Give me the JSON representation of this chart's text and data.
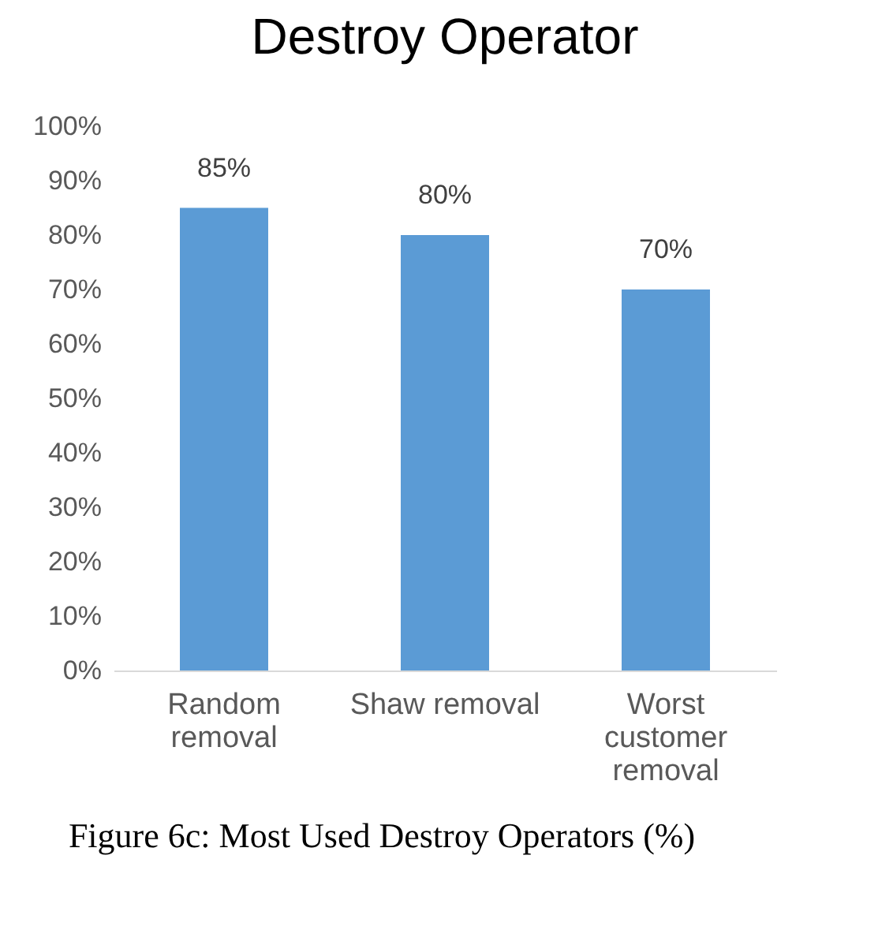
{
  "chart_data": {
    "type": "bar",
    "title": "Destroy Operator",
    "categories": [
      "Random removal",
      "Shaw removal",
      "Worst customer removal"
    ],
    "values": [
      85,
      80,
      70
    ],
    "color": "#5b9bd5",
    "value_labels": [
      "85%",
      "80%",
      "70%"
    ],
    "ylim": [
      0,
      100
    ],
    "yticks": [
      {
        "value": 0,
        "label": "0%"
      },
      {
        "value": 10,
        "label": "10%"
      },
      {
        "value": 20,
        "label": "20%"
      },
      {
        "value": 30,
        "label": "30%"
      },
      {
        "value": 40,
        "label": "40%"
      },
      {
        "value": 50,
        "label": "50%"
      },
      {
        "value": 60,
        "label": "60%"
      },
      {
        "value": 70,
        "label": "70%"
      },
      {
        "value": 80,
        "label": "80%"
      },
      {
        "value": 90,
        "label": "90%"
      },
      {
        "value": 100,
        "label": "100%"
      }
    ],
    "grid": false,
    "annotations": [
      "Figure 6c: Most Used Destroy Operators (%)"
    ]
  }
}
